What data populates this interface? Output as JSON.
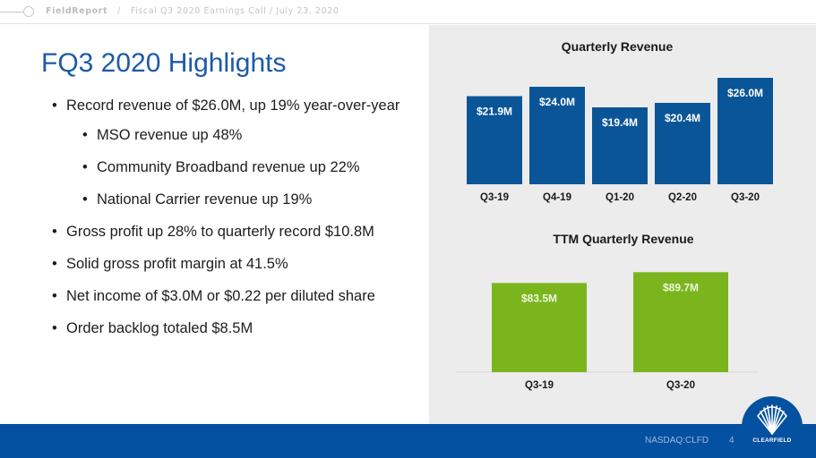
{
  "header": {
    "brand": "FieldReport",
    "separator": "/",
    "breadcrumb": "Fiscal Q3 2020 Earnings Call / July 23, 2020"
  },
  "slide": {
    "title": "FQ3 2020 Highlights",
    "bullets": [
      {
        "text": "Record revenue of $26.0M, up 19% year-over-year",
        "level": 1
      },
      {
        "text": "MSO revenue up 48%",
        "level": 2
      },
      {
        "text": "Community Broadband revenue up 22%",
        "level": 2
      },
      {
        "text": "National Carrier revenue up 19%",
        "level": 2
      },
      {
        "text": "Gross profit up 28% to quarterly record $10.8M",
        "level": 1
      },
      {
        "text": "Solid gross profit margin at 41.5%",
        "level": 1
      },
      {
        "text": "Net income of $3.0M or $0.22 per diluted share",
        "level": 1
      },
      {
        "text": "Order backlog totaled $8.5M",
        "level": 1
      }
    ]
  },
  "footer": {
    "ticker": "NASDAQ:CLFD",
    "page_number": "4",
    "logo_text": "CLEARFIELD",
    "bar_color": "#0450a1"
  },
  "chart_data": [
    {
      "type": "bar",
      "title": "Quarterly Revenue",
      "xlabel": "",
      "ylabel": "",
      "categories": [
        "Q3-19",
        "Q4-19",
        "Q1-20",
        "Q2-20",
        "Q3-20"
      ],
      "values": [
        21.9,
        24.0,
        19.4,
        20.4,
        26.0
      ],
      "data_labels": [
        "$21.9M",
        "$24.0M",
        "$19.4M",
        "$20.4M",
        "$26.0M"
      ],
      "units": "$M",
      "ylim": [
        2.2,
        28
      ],
      "grid": false,
      "color": "#0a5597"
    },
    {
      "type": "bar",
      "title": "TTM Quarterly Revenue",
      "xlabel": "",
      "ylabel": "",
      "categories": [
        "Q3-19",
        "Q3-20"
      ],
      "values": [
        83.5,
        89.7
      ],
      "data_labels": [
        "$83.5M",
        "$89.7M"
      ],
      "units": "$M",
      "ylim": [
        32.3,
        95
      ],
      "grid": false,
      "color": "#7ab51d"
    }
  ]
}
